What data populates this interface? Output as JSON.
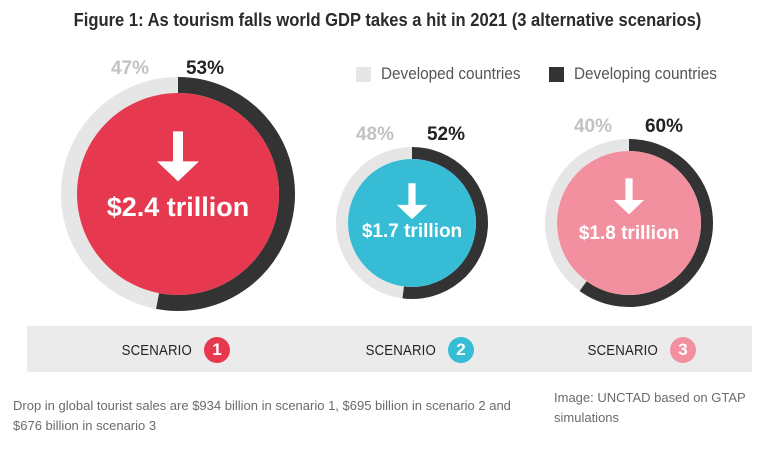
{
  "title": "Figure 1: As tourism falls world GDP takes a hit in 2021 (3 alternative scenarios)",
  "legend": {
    "developed": {
      "label": "Developed countries",
      "color": "#e6e6e6"
    },
    "developing": {
      "label": "Developing countries",
      "color": "#333333"
    }
  },
  "chart_data": {
    "type": "pie",
    "title": "Figure 1: As tourism falls world GDP takes a hit in 2021 (3 alternative scenarios)",
    "series_names": [
      "Developed countries",
      "Developing countries"
    ],
    "scenarios": [
      {
        "scenario": "SCENARIO",
        "number": "1",
        "gdp_loss_trillion": 2.4,
        "loss_label": "$2.4 trillion",
        "developed_pct": 47,
        "developing_pct": 53,
        "developed_label": "47%",
        "developing_label": "53%",
        "color": "#e63950"
      },
      {
        "scenario": "SCENARIO",
        "number": "2",
        "gdp_loss_trillion": 1.7,
        "loss_label": "$1.7 trillion",
        "developed_pct": 48,
        "developing_pct": 52,
        "developed_label": "48%",
        "developing_label": "52%",
        "color": "#37bcd6"
      },
      {
        "scenario": "SCENARIO",
        "number": "3",
        "gdp_loss_trillion": 1.8,
        "loss_label": "$1.8 trillion",
        "developed_pct": 40,
        "developing_pct": 60,
        "developed_label": "40%",
        "developing_label": "60%",
        "color": "#f2909f"
      }
    ]
  },
  "footnote": "Drop in global tourist sales are $934 billion in scenario 1, $695 billion in scenario 2 and $676 billion in scenario 3",
  "source": "Image: UNCTAD based on GTAP simulations",
  "icons": {
    "arrow": "down-arrow-icon"
  }
}
